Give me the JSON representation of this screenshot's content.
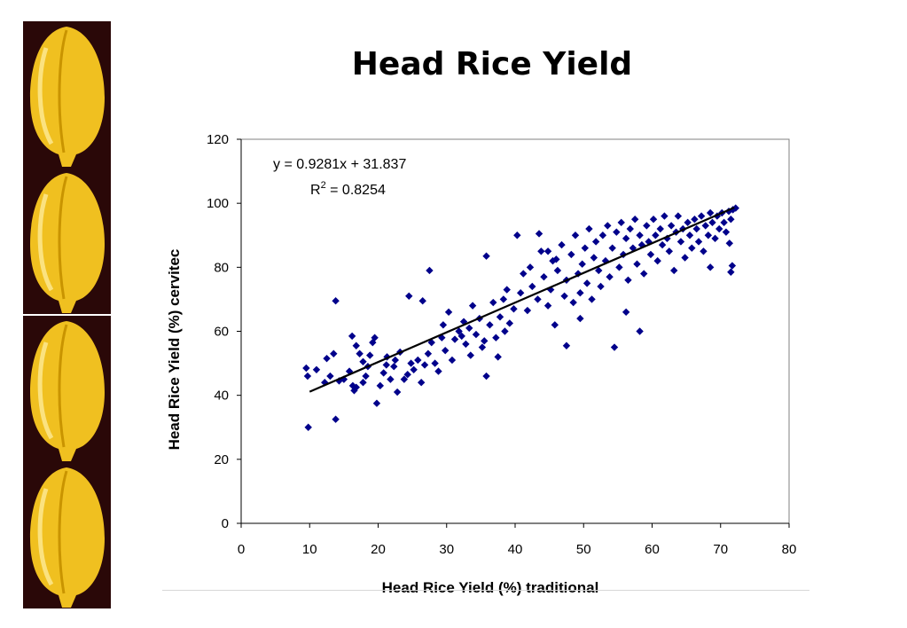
{
  "slide": {
    "title": "Head Rice Yield"
  },
  "colors": {
    "marker": "#00008b",
    "trendline": "#000000",
    "grain_background": "#2a0808",
    "grain_fill": "#f0c020"
  },
  "decoration": {
    "left_strip_icon": "rice-grain-icon",
    "grain_count": 4
  },
  "chart_data": {
    "type": "scatter",
    "xlabel": "Head Rice Yield (%) traditional",
    "ylabel": "Head Rice Yield (%) cervitec",
    "xlim": [
      0,
      80
    ],
    "ylim": [
      0,
      120
    ],
    "xticks": [
      "0",
      "10",
      "20",
      "30",
      "40",
      "50",
      "60",
      "70",
      "80"
    ],
    "yticks": [
      "0",
      "20",
      "40",
      "60",
      "80",
      "100",
      "120"
    ],
    "grid": false,
    "legend": "none",
    "trendline": {
      "equation": "y = 0.9281x + 31.837",
      "r_squared_label": "R",
      "r_squared_sup": "2",
      "r_squared_value": " = 0.8254",
      "slope": 0.9281,
      "intercept": 31.837,
      "x_range": [
        10,
        72
      ]
    },
    "series": [
      {
        "marker": "diamond",
        "points": [
          [
            9.8,
            30
          ],
          [
            13.8,
            32.5
          ],
          [
            13.8,
            69.5
          ],
          [
            9.5,
            48.5
          ],
          [
            9.7,
            46
          ],
          [
            11,
            48
          ],
          [
            12.2,
            44
          ],
          [
            12.5,
            51.5
          ],
          [
            13.5,
            53
          ],
          [
            13,
            46
          ],
          [
            14.3,
            44.5
          ],
          [
            15,
            45
          ],
          [
            15.8,
            47.5
          ],
          [
            16.3,
            43
          ],
          [
            16.5,
            41.5
          ],
          [
            16.8,
            42.5
          ],
          [
            16.2,
            58.5
          ],
          [
            16.8,
            55.5
          ],
          [
            17.3,
            53
          ],
          [
            17.8,
            50.5
          ],
          [
            18.5,
            49
          ],
          [
            18.2,
            46
          ],
          [
            17.8,
            44
          ],
          [
            18.8,
            52.5
          ],
          [
            19.2,
            56.5
          ],
          [
            19.5,
            58
          ],
          [
            19.8,
            37.5
          ],
          [
            20.3,
            43
          ],
          [
            20.8,
            47
          ],
          [
            21.3,
            52
          ],
          [
            21.8,
            45
          ],
          [
            21.2,
            49.5
          ],
          [
            22.3,
            49
          ],
          [
            22.8,
            41
          ],
          [
            22.5,
            51
          ],
          [
            23.2,
            53.5
          ],
          [
            23.8,
            45
          ],
          [
            24.3,
            46.5
          ],
          [
            24.8,
            50
          ],
          [
            25.2,
            48
          ],
          [
            24.5,
            71
          ],
          [
            25.8,
            51
          ],
          [
            26.3,
            44
          ],
          [
            26.8,
            49.5
          ],
          [
            26.5,
            69.5
          ],
          [
            27.3,
            53
          ],
          [
            27.8,
            56.5
          ],
          [
            27.5,
            79
          ],
          [
            28.3,
            50
          ],
          [
            28.8,
            47.5
          ],
          [
            29.3,
            58
          ],
          [
            29.8,
            54
          ],
          [
            29.5,
            62
          ],
          [
            30.3,
            66
          ],
          [
            30.8,
            51
          ],
          [
            31.2,
            57.5
          ],
          [
            31.8,
            60
          ],
          [
            32.2,
            58.5
          ],
          [
            32.5,
            63
          ],
          [
            32.8,
            56
          ],
          [
            33.3,
            61
          ],
          [
            33.8,
            68
          ],
          [
            33.5,
            52.5
          ],
          [
            34.3,
            59
          ],
          [
            34.8,
            64
          ],
          [
            35.2,
            55
          ],
          [
            35.8,
            46
          ],
          [
            35.5,
            57
          ],
          [
            36.3,
            62
          ],
          [
            36.8,
            69
          ],
          [
            37.2,
            58
          ],
          [
            37.8,
            64.5
          ],
          [
            37.5,
            52
          ],
          [
            38.3,
            70
          ],
          [
            38.8,
            73
          ],
          [
            38.5,
            60
          ],
          [
            39.2,
            62.5
          ],
          [
            39.8,
            67
          ],
          [
            35.8,
            83.5
          ],
          [
            40.3,
            90
          ],
          [
            40.8,
            72
          ],
          [
            41.2,
            78
          ],
          [
            41.8,
            66.5
          ],
          [
            42.2,
            80
          ],
          [
            42.5,
            74
          ],
          [
            43.3,
            70
          ],
          [
            43.8,
            85
          ],
          [
            44.2,
            77
          ],
          [
            44.8,
            68
          ],
          [
            45.2,
            73
          ],
          [
            45.5,
            82
          ],
          [
            45.8,
            62
          ],
          [
            46.2,
            79
          ],
          [
            46.8,
            87
          ],
          [
            47.2,
            71
          ],
          [
            47.5,
            76
          ],
          [
            48.2,
            84
          ],
          [
            48.5,
            69
          ],
          [
            48.8,
            90
          ],
          [
            49.2,
            78
          ],
          [
            49.5,
            72
          ],
          [
            49.8,
            81
          ],
          [
            50.2,
            86
          ],
          [
            50.5,
            75
          ],
          [
            50.8,
            92
          ],
          [
            51.2,
            70
          ],
          [
            51.5,
            83
          ],
          [
            51.8,
            88
          ],
          [
            52.2,
            79
          ],
          [
            52.5,
            74
          ],
          [
            52.8,
            90
          ],
          [
            53.2,
            82
          ],
          [
            53.5,
            93
          ],
          [
            53.8,
            77
          ],
          [
            54.2,
            86
          ],
          [
            54.5,
            55
          ],
          [
            54.8,
            91
          ],
          [
            55.2,
            80
          ],
          [
            55.5,
            94
          ],
          [
            55.8,
            84
          ],
          [
            56.2,
            89
          ],
          [
            56.5,
            76
          ],
          [
            56.8,
            92
          ],
          [
            57.2,
            86
          ],
          [
            57.5,
            95
          ],
          [
            57.8,
            81
          ],
          [
            58.2,
            90
          ],
          [
            58.5,
            87
          ],
          [
            58.8,
            78
          ],
          [
            59.2,
            93
          ],
          [
            59.5,
            88
          ],
          [
            59.8,
            84
          ],
          [
            60.2,
            95
          ],
          [
            60.5,
            90
          ],
          [
            60.8,
            82
          ],
          [
            61.2,
            92
          ],
          [
            61.5,
            87
          ],
          [
            61.8,
            96
          ],
          [
            62.2,
            89
          ],
          [
            62.5,
            85
          ],
          [
            62.8,
            93
          ],
          [
            63.2,
            79
          ],
          [
            63.5,
            91
          ],
          [
            63.8,
            96
          ],
          [
            64.2,
            88
          ],
          [
            64.5,
            92
          ],
          [
            64.8,
            83
          ],
          [
            65.2,
            94
          ],
          [
            65.5,
            90
          ],
          [
            65.8,
            86
          ],
          [
            66.2,
            95
          ],
          [
            66.5,
            92
          ],
          [
            66.8,
            88
          ],
          [
            67.2,
            96
          ],
          [
            67.5,
            85
          ],
          [
            67.8,
            93
          ],
          [
            68.2,
            90
          ],
          [
            68.5,
            97
          ],
          [
            68.8,
            94
          ],
          [
            69.2,
            89
          ],
          [
            69.5,
            96
          ],
          [
            69.8,
            92
          ],
          [
            70.2,
            97
          ],
          [
            70.5,
            94
          ],
          [
            70.8,
            91
          ],
          [
            71.2,
            97.5
          ],
          [
            71.5,
            95
          ],
          [
            71.8,
            98
          ],
          [
            72.2,
            98.5
          ],
          [
            71.3,
            87.5
          ],
          [
            71.5,
            78.5
          ],
          [
            71.7,
            80.5
          ],
          [
            68.5,
            80
          ],
          [
            43.5,
            90.5
          ],
          [
            47.5,
            55.5
          ],
          [
            56.2,
            66
          ],
          [
            58.2,
            60
          ],
          [
            44.8,
            85
          ],
          [
            46,
            82.5
          ],
          [
            49.5,
            64
          ]
        ]
      }
    ]
  }
}
